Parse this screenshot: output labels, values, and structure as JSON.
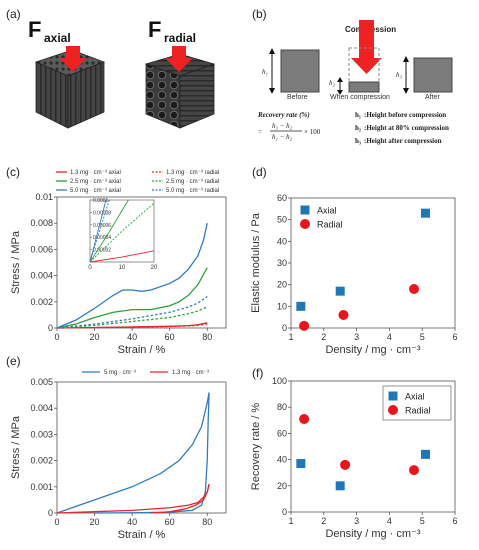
{
  "panels": {
    "a": "(a)",
    "b": "(b)",
    "c": "(c)",
    "d": "(d)",
    "e": "(e)",
    "f": "(f)"
  },
  "panel_a": {
    "f_letter": "F",
    "axial_sub": "axial",
    "radial_sub": "radial"
  },
  "panel_b": {
    "compression": "Compression",
    "h1": "h₁",
    "h2": "h₂",
    "h3": "h₃",
    "before": "Before",
    "when": "When compression",
    "after": "After",
    "recovery_label": "Recovery rate (%)",
    "formula_eq": "=",
    "formula_num": "h₃ − h₂",
    "formula_den": "h₁ − h₂",
    "formula_tail": "× 100",
    "notes": [
      {
        "sym": "h₁",
        "text": ":Height before compression"
      },
      {
        "sym": "h₂",
        "text": ":Height at 80% compression"
      },
      {
        "sym": "h₃",
        "text": ":Height after compression"
      }
    ]
  },
  "colors": {
    "blue": "#2f7bc4",
    "green": "#2aa336",
    "red": "#e8262b",
    "marker_blue": "#1f77b4",
    "marker_red": "#e8151d"
  },
  "chart_data": [
    {
      "id": "c",
      "type": "line",
      "xlabel": "Strain / %",
      "ylabel": "Stress / MPa",
      "xlim": [
        0,
        90
      ],
      "ylim": [
        0,
        0.01
      ],
      "xticks": [
        0,
        20,
        40,
        60,
        80
      ],
      "yticks": [
        0,
        0.002,
        0.004,
        0.006,
        0.008,
        0.01
      ],
      "ytick_labels": [
        "0",
        "0.002",
        "0.004",
        "0.006",
        "0.008",
        "0.01"
      ],
      "legend": [
        "1.3 mg · cm⁻³ axial",
        "1.3 mg · cm⁻³ radial",
        "2.5 mg · cm⁻³ axial",
        "2.5 mg · cm⁻³ radial",
        "5.0 mg · cm⁻³ axial",
        "5.0 mg · cm⁻³ radial"
      ],
      "series": [
        {
          "name": "1.3 mg · cm⁻³ axial",
          "color": "red",
          "dash": false,
          "x": [
            0,
            20,
            40,
            60,
            70,
            75,
            80
          ],
          "y": [
            0,
            4e-05,
            8e-05,
            0.00013,
            0.00018,
            0.00025,
            0.0004
          ]
        },
        {
          "name": "1.3 mg · cm⁻³ radial",
          "color": "red",
          "dash": true,
          "x": [
            0,
            20,
            40,
            60,
            70,
            75,
            80
          ],
          "y": [
            0,
            3e-05,
            7e-05,
            0.00012,
            0.00016,
            0.0002,
            0.0003
          ]
        },
        {
          "name": "2.5 mg · cm⁻³ axial",
          "color": "green",
          "dash": false,
          "x": [
            0,
            10,
            20,
            30,
            40,
            50,
            60,
            65,
            70,
            75,
            80
          ],
          "y": [
            0,
            0.0003,
            0.0008,
            0.0012,
            0.0014,
            0.0014,
            0.0017,
            0.002,
            0.0025,
            0.0033,
            0.0046
          ]
        },
        {
          "name": "2.5 mg · cm⁻³ radial",
          "color": "green",
          "dash": true,
          "x": [
            0,
            20,
            40,
            60,
            70,
            75,
            80
          ],
          "y": [
            0,
            0.0002,
            0.0005,
            0.0008,
            0.0011,
            0.0013,
            0.0016
          ]
        },
        {
          "name": "5.0 mg · cm⁻³ axial",
          "color": "blue",
          "dash": false,
          "x": [
            0,
            10,
            20,
            30,
            35,
            40,
            45,
            50,
            60,
            65,
            70,
            75,
            78,
            80
          ],
          "y": [
            0,
            0.0006,
            0.0015,
            0.0025,
            0.0029,
            0.0029,
            0.0028,
            0.0029,
            0.0034,
            0.0038,
            0.0045,
            0.0055,
            0.0067,
            0.008
          ]
        },
        {
          "name": "5.0 mg · cm⁻³ radial",
          "color": "blue",
          "dash": true,
          "x": [
            0,
            20,
            40,
            60,
            70,
            75,
            80
          ],
          "y": [
            0,
            0.0003,
            0.0007,
            0.0012,
            0.0016,
            0.0019,
            0.0024
          ]
        }
      ],
      "inset": {
        "xlim": [
          0,
          20
        ],
        "ylim": [
          0,
          0.0001
        ],
        "xticks": [
          0,
          10,
          20
        ],
        "yticks": [
          0,
          2e-05,
          4e-05,
          6e-05,
          8e-05,
          0.0001
        ],
        "ytick_labels": [
          "0",
          "0.00002",
          "0.00004",
          "0.00006",
          "0.00008",
          "0.0001"
        ],
        "series": [
          {
            "color": "blue",
            "x": [
              0,
              2,
              5
            ],
            "y": [
              0,
              4e-05,
              0.0001
            ]
          },
          {
            "color": "blue",
            "dash": true,
            "x": [
              0,
              3,
              6
            ],
            "y": [
              0,
              5e-05,
              0.0001
            ]
          },
          {
            "color": "green",
            "x": [
              0,
              5,
              12
            ],
            "y": [
              0,
              4e-05,
              0.0001
            ]
          },
          {
            "color": "green",
            "dash": true,
            "x": [
              0,
              5,
              10,
              20
            ],
            "y": [
              0,
              2.5e-05,
              5e-05,
              9.5e-05
            ]
          },
          {
            "color": "red",
            "x": [
              0,
              10,
              20
            ],
            "y": [
              0,
              8e-06,
              1.8e-05
            ]
          }
        ]
      }
    },
    {
      "id": "d",
      "type": "scatter",
      "xlabel": "Density / mg · cm⁻³",
      "ylabel": "Elastic modulus / Pa",
      "xlim": [
        1,
        6
      ],
      "ylim": [
        0,
        60
      ],
      "xticks": [
        1,
        2,
        3,
        4,
        5,
        6
      ],
      "yticks": [
        0,
        10,
        20,
        30,
        40,
        50,
        60
      ],
      "legend_position": "top-left",
      "series": [
        {
          "name": "Axial",
          "marker": "square",
          "color": "marker_blue",
          "x": [
            1.3,
            2.5,
            5.1
          ],
          "y": [
            10,
            17,
            53
          ]
        },
        {
          "name": "Radial",
          "marker": "circle",
          "color": "marker_red",
          "x": [
            1.4,
            2.6,
            4.75
          ],
          "y": [
            1,
            6,
            18
          ]
        }
      ]
    },
    {
      "id": "e",
      "type": "line",
      "xlabel": "Strain / %",
      "ylabel": "Stress / MPa",
      "xlim": [
        0,
        90
      ],
      "ylim": [
        0,
        0.005
      ],
      "xticks": [
        0,
        20,
        40,
        60,
        80
      ],
      "yticks": [
        0,
        0.001,
        0.002,
        0.003,
        0.004,
        0.005
      ],
      "ytick_labels": [
        "0",
        "0.001",
        "0.002",
        "0.003",
        "0.004",
        "0.005"
      ],
      "legend": [
        "5 mg · cm⁻³",
        "1.3 mg · cm⁻³"
      ],
      "series": [
        {
          "name": "5 mg · cm⁻³",
          "color": "blue",
          "loading": true,
          "x": [
            0,
            20,
            40,
            55,
            65,
            72,
            77,
            80,
            81
          ],
          "y": [
            0,
            0.0005,
            0.001,
            0.0015,
            0.002,
            0.0026,
            0.0033,
            0.0042,
            0.0046
          ]
        },
        {
          "name": "5 mg · cm⁻³ unload",
          "color": "blue",
          "x": [
            81,
            80.5,
            80,
            79,
            77,
            72,
            60,
            40,
            20
          ],
          "y": [
            0.0046,
            0.0035,
            0.002,
            0.0008,
            0.0003,
            0.0001,
            3e-05,
            1e-05,
            0
          ]
        },
        {
          "name": "1.3 mg · cm⁻³",
          "color": "red",
          "loading": true,
          "x": [
            0,
            20,
            40,
            60,
            70,
            75,
            78,
            80,
            81
          ],
          "y": [
            0,
            5e-05,
            0.0001,
            0.0002,
            0.0003,
            0.0004,
            0.0006,
            0.0008,
            0.0011
          ]
        },
        {
          "name": "1.3 mg · cm⁻³ unload",
          "color": "red",
          "x": [
            81,
            80,
            78,
            74,
            68,
            60,
            55,
            50
          ],
          "y": [
            0.0011,
            0.0008,
            0.0005,
            0.0003,
            0.00015,
            5e-05,
            2e-05,
            0
          ]
        }
      ]
    },
    {
      "id": "f",
      "type": "scatter",
      "xlabel": "Density / mg · cm⁻³",
      "ylabel": "Recovery rate / %",
      "xlim": [
        1,
        6
      ],
      "ylim": [
        0,
        100
      ],
      "xticks": [
        1,
        2,
        3,
        4,
        5,
        6
      ],
      "yticks": [
        0,
        20,
        40,
        60,
        80,
        100
      ],
      "legend_position": "top-right",
      "series": [
        {
          "name": "Axial",
          "marker": "square",
          "color": "marker_blue",
          "x": [
            1.3,
            2.5,
            5.1
          ],
          "y": [
            37,
            20,
            44
          ]
        },
        {
          "name": "Radial",
          "marker": "circle",
          "color": "marker_red",
          "x": [
            1.4,
            2.65,
            4.75
          ],
          "y": [
            71,
            36,
            32
          ]
        }
      ]
    }
  ]
}
